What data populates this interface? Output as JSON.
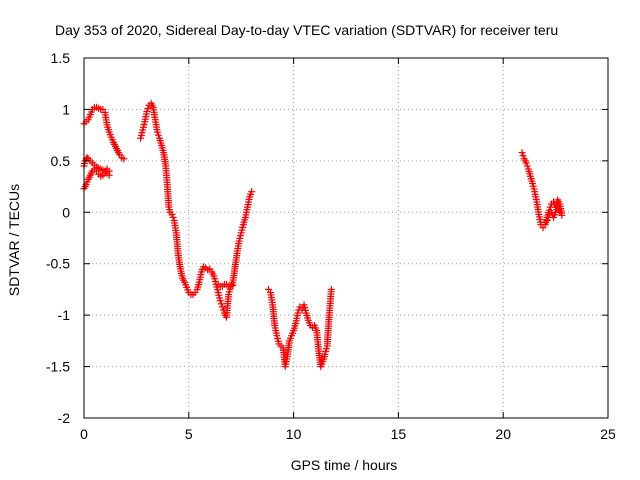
{
  "chart_data": {
    "type": "scatter",
    "title": "Day 353 of 2020, Sidereal Day-to-day VTEC variation (SDTVAR) for receiver teru",
    "xlabel": "GPS time / hours",
    "ylabel": "SDTVAR / TECUs",
    "xlim": [
      0,
      25
    ],
    "ylim": [
      -2,
      1.5
    ],
    "xticks": [
      "0",
      "5",
      "10",
      "15",
      "20",
      "25"
    ],
    "yticks": [
      "-2",
      "-1.5",
      "-1",
      "-0.5",
      "0",
      "0.5",
      "1",
      "1.5"
    ],
    "grid": true,
    "marker": "plus",
    "color": "#ff0000",
    "segments": [
      {
        "x": [
          0.0,
          0.1,
          0.2,
          0.3,
          0.4,
          0.5,
          0.6,
          0.7,
          0.8,
          0.9,
          1.0,
          1.1,
          1.2,
          1.3,
          1.4,
          1.5,
          1.6,
          1.7,
          1.8,
          1.9
        ],
        "y": [
          0.86,
          0.88,
          0.9,
          0.95,
          1.0,
          1.02,
          1.02,
          1.01,
          1.0,
          1.0,
          0.97,
          0.85,
          0.78,
          0.73,
          0.68,
          0.64,
          0.6,
          0.56,
          0.53,
          0.52
        ]
      },
      {
        "x": [
          0.0,
          0.05,
          0.1,
          0.15,
          0.2,
          0.3,
          0.4,
          0.5,
          0.6,
          0.7,
          0.8,
          0.9,
          1.0,
          1.1,
          1.2
        ],
        "y": [
          0.45,
          0.5,
          0.52,
          0.53,
          0.52,
          0.5,
          0.48,
          0.46,
          0.44,
          0.43,
          0.42,
          0.41,
          0.4,
          0.38,
          0.36
        ]
      },
      {
        "x": [
          0.0,
          0.1,
          0.2,
          0.3,
          0.4,
          0.5,
          0.6,
          0.7,
          0.8,
          0.9,
          1.0,
          1.1,
          1.2
        ],
        "y": [
          0.23,
          0.27,
          0.32,
          0.36,
          0.4,
          0.42,
          0.4,
          0.37,
          0.35,
          0.36,
          0.38,
          0.42,
          0.4
        ]
      },
      {
        "x": [
          2.7,
          2.8,
          2.9,
          3.0,
          3.1,
          3.2,
          3.3,
          3.4,
          3.5,
          3.6,
          3.7,
          3.8,
          3.9,
          4.0,
          4.05,
          4.1,
          4.2,
          4.3,
          4.4,
          4.5,
          4.6,
          4.7,
          4.8,
          4.9,
          5.0,
          5.1,
          5.2,
          5.3,
          5.4,
          5.5,
          5.6,
          5.7,
          5.8,
          5.9,
          6.0,
          6.1,
          6.2,
          6.3,
          6.4,
          6.5,
          6.6,
          6.7,
          6.8,
          6.9,
          7.0,
          7.1,
          7.2,
          7.3,
          7.4,
          7.5,
          7.6,
          7.7,
          7.8,
          7.9,
          8.0
        ],
        "y": [
          0.72,
          0.8,
          0.88,
          0.98,
          1.04,
          1.06,
          1.02,
          0.9,
          0.78,
          0.72,
          0.65,
          0.58,
          0.45,
          0.2,
          0.05,
          0.0,
          -0.02,
          -0.08,
          -0.2,
          -0.42,
          -0.55,
          -0.64,
          -0.68,
          -0.73,
          -0.78,
          -0.8,
          -0.8,
          -0.78,
          -0.75,
          -0.68,
          -0.58,
          -0.53,
          -0.54,
          -0.56,
          -0.55,
          -0.58,
          -0.62,
          -0.7,
          -0.78,
          -0.86,
          -0.92,
          -0.98,
          -1.02,
          -0.8,
          -0.72,
          -0.68,
          -0.55,
          -0.4,
          -0.28,
          -0.2,
          -0.12,
          -0.05,
          0.05,
          0.15,
          0.2
        ]
      },
      {
        "x": [
          6.4,
          6.5,
          6.6,
          6.7,
          6.8,
          6.9,
          7.0,
          7.1
        ],
        "y": [
          -0.7,
          -0.72,
          -0.72,
          -0.7,
          -0.7,
          -0.72,
          -0.72,
          -0.71
        ]
      },
      {
        "x": [
          8.8,
          8.9,
          9.0,
          9.1,
          9.2,
          9.3,
          9.4,
          9.5,
          9.6,
          9.7,
          9.8,
          9.9,
          10.0,
          10.1,
          10.2,
          10.3,
          10.4,
          10.5,
          10.6,
          10.7,
          10.8,
          10.9,
          11.0,
          11.1,
          11.2,
          11.3,
          11.4,
          11.5,
          11.6,
          11.7,
          11.8
        ],
        "y": [
          -0.75,
          -0.78,
          -0.9,
          -1.1,
          -1.2,
          -1.28,
          -1.3,
          -1.32,
          -1.5,
          -1.4,
          -1.25,
          -1.2,
          -1.15,
          -1.08,
          -0.98,
          -0.92,
          -0.95,
          -0.9,
          -0.98,
          -1.05,
          -1.1,
          -1.12,
          -1.1,
          -1.15,
          -1.35,
          -1.5,
          -1.45,
          -1.38,
          -1.3,
          -1.0,
          -0.75
        ]
      },
      {
        "x": [
          20.9,
          21.0,
          21.1,
          21.2,
          21.3,
          21.4,
          21.5,
          21.6,
          21.7,
          21.8,
          21.9,
          22.0,
          22.1,
          22.2,
          22.3,
          22.4,
          22.5,
          22.6,
          22.7,
          22.8
        ],
        "y": [
          0.58,
          0.52,
          0.48,
          0.42,
          0.35,
          0.28,
          0.2,
          0.1,
          -0.02,
          -0.12,
          -0.15,
          -0.12,
          -0.05,
          0.02,
          0.08,
          0.1,
          0.05,
          0.12,
          0.08,
          -0.03
        ]
      },
      {
        "x": [
          22.0,
          22.1,
          22.2,
          22.3,
          22.4,
          22.5,
          22.6,
          22.7
        ],
        "y": [
          -0.1,
          -0.08,
          -0.02,
          0.0,
          -0.05,
          0.0,
          0.05,
          0.0
        ]
      }
    ]
  }
}
